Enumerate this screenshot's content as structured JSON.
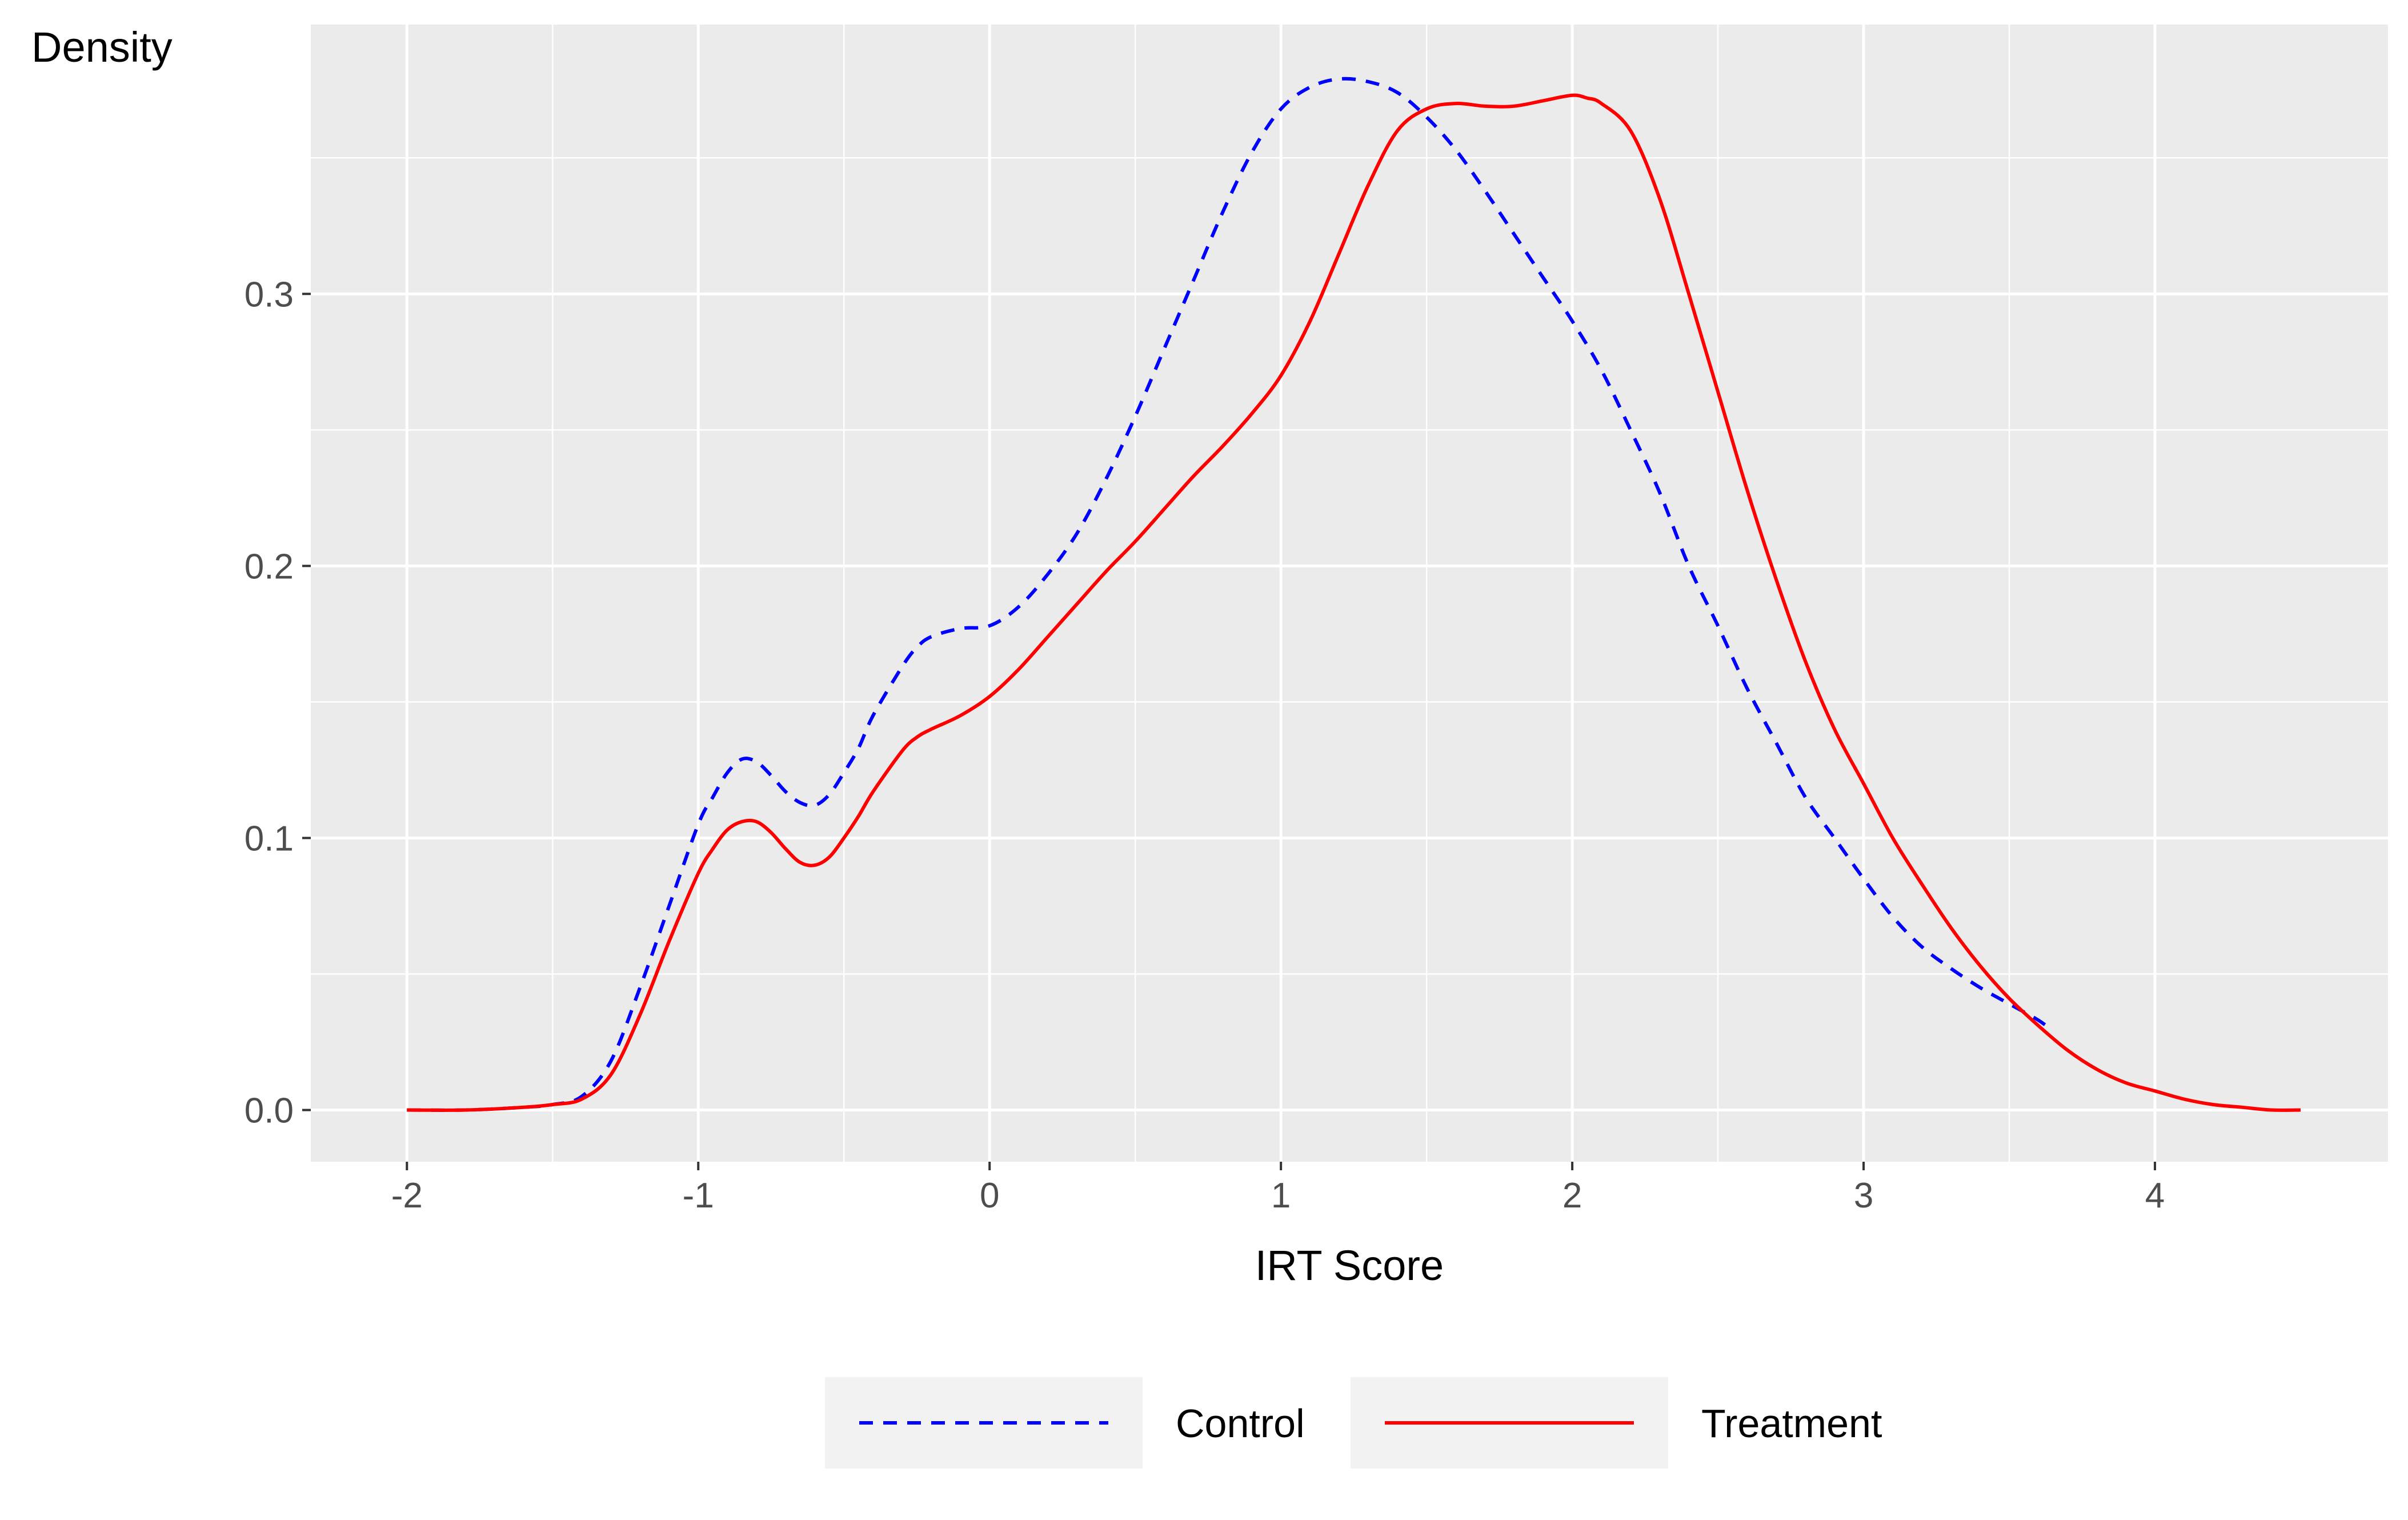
{
  "chart_data": {
    "type": "line",
    "title": "",
    "xlabel": "IRT Score",
    "ylabel": "Density",
    "xlim": [
      -2.33,
      4.8
    ],
    "ylim": [
      -0.019,
      0.399
    ],
    "x_ticks": [
      -2,
      -1,
      0,
      1,
      2,
      3,
      4
    ],
    "x_tick_labels": [
      "-2",
      "-1",
      "0",
      "1",
      "2",
      "3",
      "4"
    ],
    "y_ticks": [
      0.0,
      0.1,
      0.2,
      0.3
    ],
    "y_tick_labels": [
      "0.0",
      "0.1",
      "0.2",
      "0.3"
    ],
    "grid": true,
    "legend_position": "bottom",
    "series": [
      {
        "name": "Control",
        "color": "#0000ff",
        "line_style": "dashed",
        "x": [
          -2.0,
          -1.8,
          -1.6,
          -1.5,
          -1.4,
          -1.3,
          -1.2,
          -1.1,
          -1.0,
          -0.95,
          -0.9,
          -0.85,
          -0.8,
          -0.75,
          -0.7,
          -0.65,
          -0.6,
          -0.55,
          -0.5,
          -0.45,
          -0.4,
          -0.3,
          -0.25,
          -0.2,
          -0.1,
          0.0,
          0.1,
          0.2,
          0.3,
          0.4,
          0.5,
          0.6,
          0.7,
          0.8,
          0.9,
          1.0,
          1.1,
          1.2,
          1.3,
          1.4,
          1.5,
          1.6,
          1.7,
          1.8,
          1.9,
          2.0,
          2.1,
          2.2,
          2.3,
          2.4,
          2.5,
          2.6,
          2.7,
          2.8,
          2.9,
          3.0,
          3.1,
          3.2,
          3.3,
          3.4,
          3.5,
          3.6,
          3.65
        ],
        "y": [
          0.0,
          0.0,
          0.001,
          0.002,
          0.005,
          0.018,
          0.045,
          0.075,
          0.105,
          0.115,
          0.124,
          0.129,
          0.128,
          0.123,
          0.117,
          0.113,
          0.112,
          0.116,
          0.124,
          0.133,
          0.145,
          0.163,
          0.17,
          0.174,
          0.177,
          0.178,
          0.185,
          0.197,
          0.212,
          0.232,
          0.255,
          0.28,
          0.305,
          0.33,
          0.352,
          0.368,
          0.376,
          0.379,
          0.378,
          0.374,
          0.365,
          0.353,
          0.338,
          0.322,
          0.306,
          0.29,
          0.272,
          0.25,
          0.227,
          0.2,
          0.178,
          0.155,
          0.135,
          0.115,
          0.1,
          0.085,
          0.071,
          0.06,
          0.052,
          0.045,
          0.039,
          0.033,
          0.029
        ]
      },
      {
        "name": "Treatment",
        "color": "#ff0000",
        "line_style": "solid",
        "x": [
          -2.0,
          -1.8,
          -1.6,
          -1.5,
          -1.4,
          -1.3,
          -1.2,
          -1.1,
          -1.0,
          -0.95,
          -0.9,
          -0.85,
          -0.8,
          -0.75,
          -0.7,
          -0.65,
          -0.6,
          -0.55,
          -0.5,
          -0.45,
          -0.4,
          -0.3,
          -0.25,
          -0.2,
          -0.1,
          0.0,
          0.1,
          0.2,
          0.3,
          0.4,
          0.5,
          0.6,
          0.7,
          0.8,
          0.9,
          1.0,
          1.1,
          1.2,
          1.3,
          1.4,
          1.5,
          1.6,
          1.7,
          1.8,
          1.9,
          2.0,
          2.05,
          2.1,
          2.2,
          2.3,
          2.4,
          2.5,
          2.6,
          2.7,
          2.8,
          2.9,
          3.0,
          3.1,
          3.2,
          3.3,
          3.4,
          3.5,
          3.6,
          3.7,
          3.8,
          3.9,
          4.0,
          4.1,
          4.2,
          4.3,
          4.4,
          4.5
        ],
        "y": [
          0.0,
          0.0,
          0.001,
          0.002,
          0.004,
          0.013,
          0.035,
          0.062,
          0.087,
          0.096,
          0.103,
          0.106,
          0.106,
          0.102,
          0.096,
          0.091,
          0.09,
          0.093,
          0.1,
          0.108,
          0.117,
          0.132,
          0.137,
          0.14,
          0.145,
          0.152,
          0.162,
          0.174,
          0.186,
          0.198,
          0.209,
          0.221,
          0.233,
          0.244,
          0.256,
          0.27,
          0.29,
          0.315,
          0.34,
          0.36,
          0.368,
          0.37,
          0.369,
          0.369,
          0.371,
          0.373,
          0.372,
          0.37,
          0.36,
          0.335,
          0.3,
          0.264,
          0.228,
          0.195,
          0.165,
          0.14,
          0.12,
          0.1,
          0.083,
          0.067,
          0.053,
          0.041,
          0.031,
          0.022,
          0.015,
          0.01,
          0.007,
          0.004,
          0.002,
          0.001,
          0.0,
          0.0
        ]
      }
    ]
  }
}
